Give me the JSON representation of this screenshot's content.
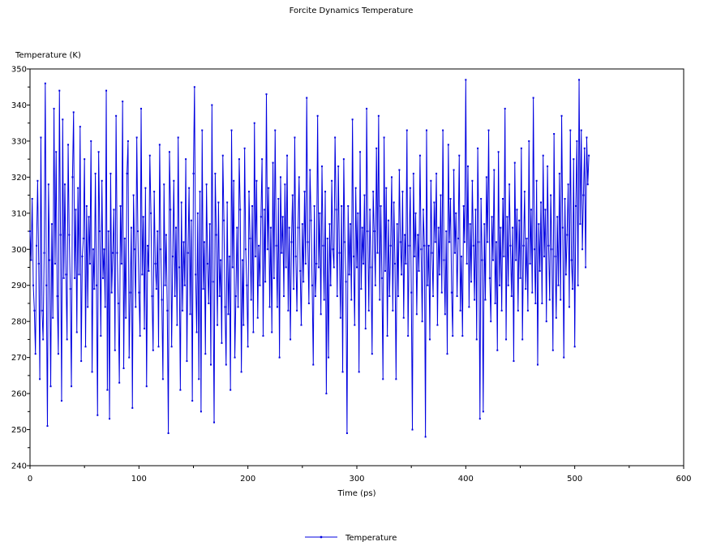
{
  "colors": {
    "series": "#0000e0",
    "axis": "#000000",
    "background": "#ffffff"
  },
  "chart_data": {
    "type": "line",
    "title": "Forcite Dynamics Temperature",
    "xlabel": "Time (ps)",
    "ylabel": "Temperature (K)",
    "xlim": [
      0,
      600
    ],
    "ylim": [
      240,
      350
    ],
    "xticks": [
      0,
      100,
      200,
      300,
      400,
      500,
      600
    ],
    "yticks": [
      240,
      250,
      260,
      270,
      280,
      290,
      300,
      310,
      320,
      330,
      340,
      350
    ],
    "xtick_labels": [
      "0",
      "100",
      "200",
      "300",
      "400",
      "500",
      "600"
    ],
    "ytick_labels": [
      "240",
      "250",
      "260",
      "270",
      "280",
      "290",
      "300",
      "310",
      "320",
      "330",
      "340",
      "350"
    ],
    "grid": false,
    "legend": "bottom-center",
    "series": [
      {
        "name": "Temperature",
        "x_start": 0,
        "x_step": 1,
        "values": [
          305,
          297,
          314,
          290,
          283,
          271,
          301,
          319,
          296,
          264,
          331,
          283,
          275,
          299,
          346,
          290,
          251,
          318,
          297,
          262,
          307,
          281,
          339,
          296,
          327,
          287,
          271,
          344,
          304,
          258,
          336,
          292,
          318,
          293,
          275,
          329,
          304,
          289,
          262,
          320,
          338,
          292,
          311,
          277,
          317,
          293,
          334,
          269,
          298,
          303,
          325,
          273,
          312,
          284,
          309,
          296,
          330,
          266,
          300,
          289,
          321,
          290,
          254,
          327,
          305,
          276,
          319,
          292,
          300,
          284,
          344,
          261,
          305,
          253,
          321,
          288,
          299,
          311,
          272,
          337,
          299,
          285,
          263,
          312,
          296,
          341,
          267,
          303,
          281,
          321,
          330,
          270,
          288,
          306,
          256,
          315,
          300,
          284,
          331,
          305,
          288,
          276,
          339,
          293,
          309,
          278,
          317,
          262,
          301,
          294,
          326,
          310,
          287,
          272,
          316,
          296,
          289,
          305,
          273,
          329,
          300,
          286,
          264,
          318,
          290,
          304,
          283,
          249,
          327,
          311,
          273,
          298,
          319,
          287,
          306,
          279,
          331,
          295,
          261,
          313,
          283,
          302,
          290,
          325,
          269,
          299,
          317,
          282,
          308,
          258,
          321,
          345,
          293,
          277,
          310,
          264,
          316,
          255,
          333,
          289,
          302,
          271,
          318,
          296,
          285,
          307,
          268,
          340,
          291,
          252,
          321,
          304,
          279,
          313,
          287,
          297,
          274,
          326,
          308,
          284,
          268,
          313,
          282,
          298,
          261,
          333,
          295,
          319,
          270,
          287,
          306,
          284,
          325,
          311,
          266,
          297,
          279,
          328,
          300,
          290,
          273,
          316,
          303,
          286,
          312,
          277,
          335,
          298,
          319,
          281,
          301,
          290,
          309,
          325,
          276,
          311,
          291,
          343,
          300,
          317,
          284,
          306,
          277,
          324,
          292,
          333,
          301,
          284,
          314,
          270,
          320,
          299,
          309,
          287,
          318,
          295,
          326,
          283,
          306,
          275,
          302,
          315,
          289,
          331,
          298,
          283,
          306,
          320,
          294,
          279,
          307,
          291,
          316,
          296,
          342,
          302,
          285,
          322,
          308,
          290,
          268,
          312,
          287,
          296,
          337,
          295,
          310,
          282,
          323,
          301,
          286,
          316,
          260,
          303,
          270,
          307,
          290,
          319,
          300,
          295,
          331,
          311,
          287,
          323,
          299,
          281,
          312,
          266,
          325,
          302,
          291,
          249,
          312,
          293,
          307,
          286,
          336,
          298,
          279,
          317,
          295,
          310,
          266,
          327,
          289,
          306,
          296,
          315,
          278,
          339,
          305,
          283,
          311,
          295,
          271,
          316,
          305,
          290,
          328,
          299,
          337,
          286,
          312,
          292,
          264,
          331,
          294,
          317,
          276,
          308,
          287,
          301,
          320,
          283,
          313,
          296,
          264,
          307,
          287,
          322,
          302,
          293,
          316,
          281,
          304,
          296,
          333,
          276,
          301,
          317,
          288,
          250,
          321,
          298,
          310,
          282,
          304,
          294,
          326,
          300,
          280,
          311,
          301,
          248,
          333,
          290,
          301,
          275,
          319,
          299,
          287,
          313,
          302,
          321,
          279,
          306,
          293,
          315,
          288,
          333,
          297,
          282,
          305,
          271,
          329,
          302,
          314,
          288,
          276,
          322,
          299,
          310,
          287,
          303,
          326,
          283,
          298,
          276,
          312,
          302,
          347,
          296,
          323,
          284,
          307,
          291,
          319,
          301,
          286,
          311,
          275,
          328,
          302,
          253,
          314,
          297,
          255,
          307,
          286,
          320,
          302,
          333,
          292,
          280,
          309,
          297,
          322,
          285,
          302,
          272,
          327,
          290,
          306,
          283,
          314,
          298,
          339,
          275,
          309,
          290,
          318,
          301,
          287,
          306,
          269,
          324,
          297,
          311,
          283,
          308,
          292,
          328,
          275,
          301,
          316,
          289,
          303,
          283,
          330,
          296,
          311,
          288,
          342,
          300,
          285,
          319,
          268,
          307,
          294,
          313,
          285,
          326,
          298,
          311,
          280,
          323,
          301,
          286,
          315,
          300,
          272,
          332,
          298,
          281,
          309,
          290,
          321,
          286,
          337,
          306,
          270,
          314,
          293,
          304,
          318,
          284,
          333,
          297,
          289,
          325,
          273,
          312,
          330,
          290,
          347,
          307,
          333,
          300,
          315,
          328,
          295,
          331,
          318,
          326
        ]
      }
    ]
  }
}
